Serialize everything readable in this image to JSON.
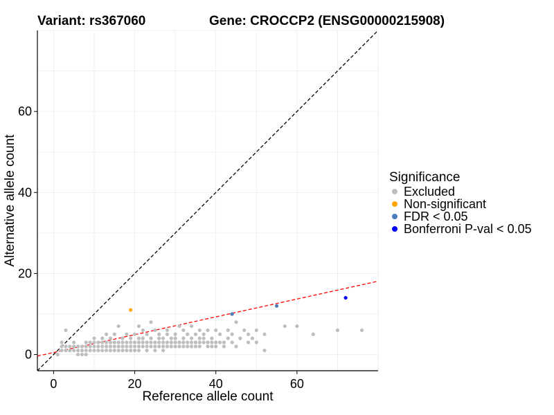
{
  "title_left": "Variant: rs367060",
  "title_right": "Gene: CROCCP2 (ENSG00000215908)",
  "chart_data": {
    "type": "scatter",
    "xlabel": "Reference allele count",
    "ylabel": "Alternative allele count",
    "xlim": [
      -4,
      80
    ],
    "ylim": [
      -4,
      80
    ],
    "x_ticks": [
      0,
      20,
      40,
      60
    ],
    "y_ticks": [
      0,
      20,
      40,
      60
    ],
    "grid": true,
    "legend_position": "right",
    "legend": {
      "title": "Significance",
      "entries": [
        {
          "label": "Excluded",
          "color": "#BEBEBE"
        },
        {
          "label": "Non-significant",
          "color": "#FFA500"
        },
        {
          "label": "FDR < 0.05",
          "color": "#4A7EBB"
        },
        {
          "label": "Bonferroni P-val < 0.05",
          "color": "#0000FF"
        }
      ]
    },
    "reference_lines": [
      {
        "name": "identity",
        "slope": 1,
        "intercept": 0,
        "color": "#000000",
        "style": "dashed"
      },
      {
        "name": "fit",
        "slope": 0.22,
        "intercept": 0.5,
        "color": "#FF0000",
        "style": "dashed"
      }
    ],
    "series": [
      {
        "category": "Excluded",
        "color": "#BEBEBE",
        "points": [
          [
            1,
            0
          ],
          [
            2,
            1
          ],
          [
            2,
            2
          ],
          [
            2,
            3
          ],
          [
            3,
            2
          ],
          [
            3,
            6
          ],
          [
            3,
            1
          ],
          [
            4,
            2
          ],
          [
            4,
            1
          ],
          [
            5,
            2
          ],
          [
            5,
            3
          ],
          [
            5,
            1
          ],
          [
            6,
            1
          ],
          [
            6,
            0
          ],
          [
            6,
            2
          ],
          [
            7,
            0
          ],
          [
            7,
            1
          ],
          [
            7,
            2
          ],
          [
            8,
            0
          ],
          [
            8,
            1
          ],
          [
            8,
            2
          ],
          [
            8,
            3
          ],
          [
            9,
            1
          ],
          [
            9,
            2
          ],
          [
            9,
            3
          ],
          [
            10,
            1
          ],
          [
            10,
            2
          ],
          [
            10,
            3
          ],
          [
            10,
            4
          ],
          [
            11,
            1
          ],
          [
            11,
            2
          ],
          [
            11,
            3
          ],
          [
            12,
            1
          ],
          [
            12,
            2
          ],
          [
            12,
            3
          ],
          [
            12,
            4
          ],
          [
            13,
            1
          ],
          [
            13,
            2
          ],
          [
            13,
            3
          ],
          [
            13,
            5
          ],
          [
            14,
            1
          ],
          [
            14,
            2
          ],
          [
            14,
            3
          ],
          [
            14,
            4
          ],
          [
            15,
            1
          ],
          [
            15,
            2
          ],
          [
            15,
            3
          ],
          [
            15,
            5
          ],
          [
            16,
            1
          ],
          [
            16,
            2
          ],
          [
            16,
            3
          ],
          [
            16,
            7
          ],
          [
            17,
            1
          ],
          [
            17,
            2
          ],
          [
            17,
            3
          ],
          [
            17,
            4
          ],
          [
            18,
            1
          ],
          [
            18,
            2
          ],
          [
            18,
            3
          ],
          [
            18,
            5
          ],
          [
            19,
            1
          ],
          [
            19,
            2
          ],
          [
            19,
            3
          ],
          [
            19,
            4
          ],
          [
            20,
            1
          ],
          [
            20,
            2
          ],
          [
            20,
            3
          ],
          [
            20,
            5
          ],
          [
            21,
            1
          ],
          [
            21,
            2
          ],
          [
            21,
            3
          ],
          [
            21,
            4
          ],
          [
            21,
            7
          ],
          [
            22,
            2
          ],
          [
            22,
            3
          ],
          [
            22,
            4
          ],
          [
            22,
            6
          ],
          [
            23,
            1
          ],
          [
            23,
            2
          ],
          [
            23,
            3
          ],
          [
            23,
            5
          ],
          [
            24,
            2
          ],
          [
            24,
            3
          ],
          [
            24,
            4
          ],
          [
            24,
            8
          ],
          [
            25,
            1
          ],
          [
            25,
            2
          ],
          [
            25,
            3
          ],
          [
            25,
            6
          ],
          [
            26,
            2
          ],
          [
            26,
            3
          ],
          [
            26,
            4
          ],
          [
            26,
            5
          ],
          [
            27,
            1
          ],
          [
            27,
            2
          ],
          [
            27,
            3
          ],
          [
            27,
            4
          ],
          [
            28,
            2
          ],
          [
            28,
            3
          ],
          [
            28,
            5
          ],
          [
            28,
            6
          ],
          [
            29,
            2
          ],
          [
            29,
            3
          ],
          [
            29,
            4
          ],
          [
            30,
            2
          ],
          [
            30,
            3
          ],
          [
            30,
            4
          ],
          [
            30,
            5
          ],
          [
            31,
            2
          ],
          [
            31,
            3
          ],
          [
            31,
            7
          ],
          [
            32,
            2
          ],
          [
            32,
            3
          ],
          [
            32,
            4
          ],
          [
            32,
            6
          ],
          [
            33,
            2
          ],
          [
            33,
            3
          ],
          [
            33,
            5
          ],
          [
            34,
            2
          ],
          [
            34,
            3
          ],
          [
            34,
            4
          ],
          [
            34,
            7
          ],
          [
            35,
            2
          ],
          [
            35,
            3
          ],
          [
            35,
            5
          ],
          [
            36,
            2
          ],
          [
            36,
            3
          ],
          [
            36,
            4
          ],
          [
            36,
            6
          ],
          [
            37,
            3
          ],
          [
            37,
            4
          ],
          [
            37,
            5
          ],
          [
            38,
            2
          ],
          [
            38,
            3
          ],
          [
            38,
            6
          ],
          [
            39,
            2
          ],
          [
            39,
            3
          ],
          [
            39,
            4
          ],
          [
            40,
            2
          ],
          [
            40,
            3
          ],
          [
            40,
            6
          ],
          [
            41,
            3
          ],
          [
            41,
            5
          ],
          [
            42,
            2
          ],
          [
            42,
            3
          ],
          [
            43,
            4
          ],
          [
            43,
            6
          ],
          [
            44,
            3
          ],
          [
            44,
            5
          ],
          [
            45,
            2
          ],
          [
            45,
            8
          ],
          [
            46,
            4
          ],
          [
            47,
            6
          ],
          [
            48,
            3
          ],
          [
            48,
            5
          ],
          [
            49,
            4
          ],
          [
            50,
            3
          ],
          [
            50,
            6
          ],
          [
            52,
            1
          ],
          [
            52,
            5
          ],
          [
            57,
            7
          ],
          [
            60,
            7
          ],
          [
            64,
            5
          ],
          [
            70,
            6
          ],
          [
            76,
            6
          ]
        ]
      },
      {
        "category": "Non-significant",
        "color": "#FFA500",
        "points": [
          [
            19,
            11
          ]
        ]
      },
      {
        "category": "FDR < 0.05",
        "color": "#4A7EBB",
        "points": [
          [
            44,
            10
          ],
          [
            55,
            12
          ]
        ]
      },
      {
        "category": "Bonferroni P-val < 0.05",
        "color": "#0000FF",
        "points": [
          [
            72,
            14
          ]
        ]
      }
    ]
  }
}
